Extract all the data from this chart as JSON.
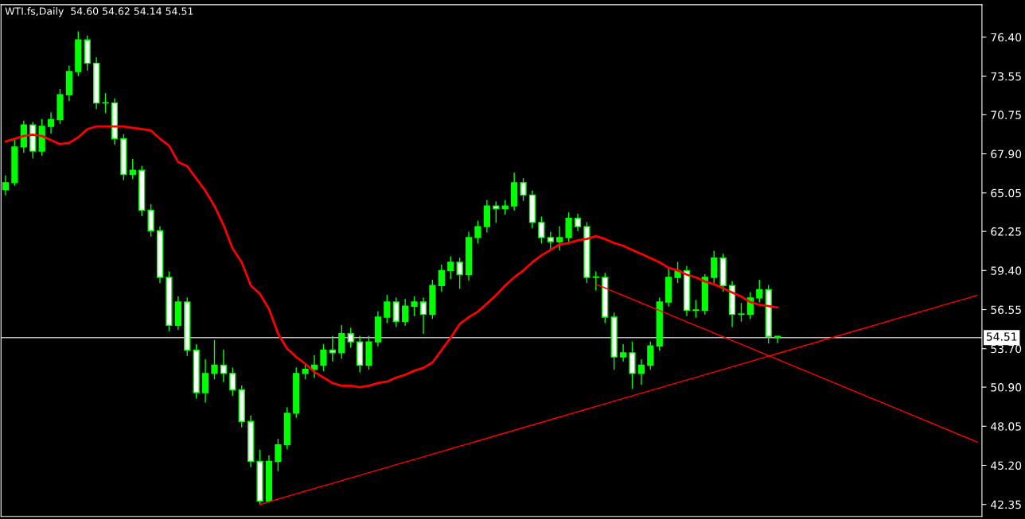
{
  "chart_data": {
    "type": "candlestick",
    "title": "WTI.fs,Daily  54.60 54.62 54.14 54.51",
    "categories": [
      null,
      null,
      null,
      null,
      null,
      null,
      null,
      null,
      null,
      null,
      null,
      null,
      null,
      null,
      null,
      null,
      null,
      null,
      null,
      null,
      null,
      null,
      null,
      null,
      null,
      null,
      null,
      null,
      null,
      null,
      null,
      null,
      null,
      null,
      null,
      null,
      null,
      null,
      null,
      null,
      null,
      null,
      null,
      null,
      null,
      null,
      null,
      null,
      null,
      null,
      null,
      null,
      null,
      null,
      null,
      null,
      null,
      null,
      null,
      null,
      null,
      null,
      null,
      null,
      null,
      null,
      null,
      null,
      null,
      null,
      null,
      null,
      null,
      null,
      null,
      null,
      null,
      null,
      null,
      null,
      null,
      null,
      null,
      null,
      null,
      null,
      null,
      null,
      null,
      null,
      null,
      null,
      null,
      null,
      null,
      null,
      null,
      null,
      null,
      null,
      null,
      null,
      null,
      null,
      null,
      null,
      null,
      null
    ],
    "ohlc": [
      [
        65.3,
        66.3,
        64.9,
        65.8
      ],
      [
        65.8,
        68.9,
        65.6,
        68.4
      ],
      [
        68.4,
        70.3,
        68.0,
        70.0
      ],
      [
        70.0,
        70.2,
        67.6,
        68.1
      ],
      [
        68.1,
        70.4,
        67.8,
        69.9
      ],
      [
        69.9,
        70.9,
        69.4,
        70.4
      ],
      [
        70.4,
        72.6,
        70.1,
        72.2
      ],
      [
        72.2,
        74.3,
        71.8,
        73.9
      ],
      [
        73.9,
        76.8,
        73.6,
        76.2
      ],
      [
        76.2,
        76.5,
        74.0,
        74.5
      ],
      [
        74.5,
        74.9,
        71.2,
        71.6
      ],
      [
        71.6,
        72.3,
        70.9,
        71.6
      ],
      [
        71.6,
        71.9,
        68.6,
        69.0
      ],
      [
        69.0,
        69.3,
        66.0,
        66.4
      ],
      [
        66.4,
        67.5,
        66.1,
        66.7
      ],
      [
        66.7,
        67.0,
        63.4,
        63.8
      ],
      [
        63.8,
        64.2,
        61.9,
        62.3
      ],
      [
        62.3,
        62.6,
        58.5,
        58.9
      ],
      [
        58.9,
        59.3,
        55.0,
        55.4
      ],
      [
        55.4,
        57.5,
        55.1,
        57.1
      ],
      [
        57.1,
        57.4,
        53.2,
        53.6
      ],
      [
        53.6,
        54.0,
        50.1,
        50.5
      ],
      [
        50.5,
        52.9,
        49.8,
        51.9
      ],
      [
        51.9,
        54.3,
        51.5,
        52.5
      ],
      [
        52.5,
        53.6,
        51.3,
        51.9
      ],
      [
        51.9,
        52.3,
        50.3,
        50.7
      ],
      [
        50.7,
        51.0,
        48.0,
        48.4
      ],
      [
        48.4,
        48.8,
        45.1,
        45.5
      ],
      [
        45.5,
        46.3,
        42.35,
        42.6
      ],
      [
        42.6,
        45.9,
        42.5,
        45.5
      ],
      [
        45.5,
        47.1,
        44.8,
        46.7
      ],
      [
        46.7,
        49.4,
        46.4,
        49.0
      ],
      [
        49.0,
        52.3,
        48.7,
        51.9
      ],
      [
        51.9,
        52.6,
        51.5,
        52.2
      ],
      [
        52.2,
        53.2,
        51.6,
        52.5
      ],
      [
        52.5,
        54.0,
        52.1,
        53.6
      ],
      [
        53.6,
        54.6,
        52.8,
        53.4
      ],
      [
        53.4,
        55.4,
        53.0,
        54.8
      ],
      [
        54.8,
        55.2,
        53.8,
        54.2
      ],
      [
        54.2,
        54.6,
        52.0,
        52.5
      ],
      [
        52.5,
        54.6,
        52.2,
        54.2
      ],
      [
        54.2,
        56.4,
        53.9,
        56.0
      ],
      [
        56.0,
        57.6,
        55.6,
        57.1
      ],
      [
        57.1,
        57.4,
        55.3,
        55.7
      ],
      [
        55.7,
        57.3,
        55.4,
        56.8
      ],
      [
        56.8,
        57.5,
        56.1,
        57.1
      ],
      [
        57.1,
        57.4,
        54.8,
        56.2
      ],
      [
        56.2,
        58.7,
        55.9,
        58.3
      ],
      [
        58.3,
        59.8,
        57.9,
        59.4
      ],
      [
        59.4,
        60.4,
        58.8,
        60.0
      ],
      [
        60.0,
        60.3,
        58.1,
        59.1
      ],
      [
        59.1,
        62.2,
        58.7,
        61.8
      ],
      [
        61.8,
        63.0,
        61.4,
        62.6
      ],
      [
        62.6,
        64.5,
        62.2,
        64.1
      ],
      [
        64.1,
        64.4,
        62.9,
        63.9
      ],
      [
        63.9,
        64.5,
        63.5,
        64.1
      ],
      [
        64.1,
        66.5,
        63.8,
        65.8
      ],
      [
        65.8,
        66.1,
        64.5,
        64.9
      ],
      [
        64.9,
        65.2,
        62.5,
        62.9
      ],
      [
        62.9,
        63.3,
        61.4,
        61.8
      ],
      [
        61.8,
        62.2,
        61.0,
        61.5
      ],
      [
        61.5,
        62.6,
        60.9,
        61.8
      ],
      [
        61.8,
        63.6,
        61.5,
        63.2
      ],
      [
        63.2,
        63.5,
        62.3,
        62.6
      ],
      [
        62.6,
        62.9,
        58.5,
        58.9
      ],
      [
        58.9,
        59.3,
        58.0,
        58.9
      ],
      [
        58.9,
        59.2,
        55.6,
        56.0
      ],
      [
        56.0,
        56.3,
        52.2,
        53.1
      ],
      [
        53.1,
        54.0,
        52.8,
        53.4
      ],
      [
        53.4,
        54.2,
        50.8,
        51.9
      ],
      [
        51.9,
        52.9,
        51.1,
        52.5
      ],
      [
        52.5,
        54.2,
        52.2,
        53.9
      ],
      [
        53.9,
        57.4,
        53.6,
        57.1
      ],
      [
        57.1,
        59.6,
        56.8,
        58.9
      ],
      [
        58.9,
        60.0,
        58.5,
        59.4
      ],
      [
        59.4,
        59.7,
        56.1,
        56.5
      ],
      [
        56.5,
        57.2,
        56.0,
        56.5
      ],
      [
        56.5,
        59.1,
        56.2,
        58.9
      ],
      [
        58.9,
        60.8,
        58.5,
        60.3
      ],
      [
        60.3,
        60.6,
        57.9,
        58.3
      ],
      [
        58.3,
        58.6,
        55.3,
        56.2
      ],
      [
        56.2,
        57.0,
        55.7,
        56.2
      ],
      [
        56.2,
        57.8,
        55.9,
        57.4
      ],
      [
        57.4,
        58.7,
        57.1,
        58.0
      ],
      [
        58.0,
        58.3,
        54.1,
        54.6
      ],
      [
        54.6,
        54.62,
        54.14,
        54.51
      ],
      null,
      null,
      null,
      null,
      null,
      null,
      null,
      null,
      null,
      null,
      null,
      null,
      null,
      null,
      null,
      null,
      null,
      null,
      null,
      null,
      null,
      null
    ],
    "color": "#00ff00",
    "series": [
      {
        "type": "line",
        "color": "#ff0000",
        "values": [
          68.8,
          69.0,
          69.2,
          69.3,
          69.2,
          68.9,
          68.6,
          68.7,
          69.1,
          69.7,
          69.9,
          69.9,
          69.9,
          69.9,
          69.8,
          69.7,
          69.6,
          69.0,
          68.5,
          67.3,
          67.0,
          66.1,
          65.2,
          64.1,
          62.7,
          61.0,
          60.0,
          58.3,
          57.7,
          56.6,
          54.8,
          53.7,
          53.1,
          52.6,
          52.0,
          51.6,
          51.2,
          51.0,
          51.0,
          50.9,
          51.0,
          51.2,
          51.3,
          51.6,
          51.8,
          52.1,
          52.3,
          52.7,
          53.6,
          54.5,
          55.5,
          56.0,
          56.4,
          57.0,
          57.6,
          58.3,
          58.9,
          59.4,
          60.0,
          60.5,
          60.9,
          61.3,
          61.4,
          61.6,
          61.7,
          61.9,
          61.7,
          61.4,
          61.2,
          60.9,
          60.6,
          60.3,
          60.0,
          59.6,
          59.4,
          59.1,
          58.9,
          58.6,
          58.4,
          58.1,
          57.8,
          57.5,
          57.1,
          56.9,
          56.8,
          56.7,
          null,
          null,
          null,
          null,
          null,
          null,
          null,
          null,
          null,
          null,
          null,
          null,
          null,
          null,
          null,
          null,
          null,
          null,
          null,
          null,
          null,
          null
        ]
      },
      {
        "type": "line",
        "color": "#ff0000",
        "values": [
          null,
          null,
          null,
          null,
          null,
          null,
          null,
          null,
          null,
          null,
          null,
          null,
          null,
          null,
          null,
          null,
          null,
          null,
          null,
          null,
          null,
          null,
          null,
          null,
          null,
          null,
          null,
          null,
          42.35,
          42.54,
          42.74,
          42.93,
          43.12,
          43.32,
          43.51,
          43.7,
          43.89,
          44.09,
          44.28,
          44.47,
          44.67,
          44.86,
          45.05,
          45.25,
          45.44,
          45.63,
          45.82,
          46.02,
          46.21,
          46.4,
          46.6,
          46.79,
          46.98,
          47.17,
          47.37,
          47.56,
          47.75,
          47.95,
          48.14,
          48.33,
          48.53,
          48.72,
          48.91,
          49.11,
          49.3,
          49.49,
          49.68,
          49.88,
          50.07,
          50.26,
          50.46,
          50.65,
          50.84,
          51.04,
          51.23,
          51.42,
          51.61,
          51.81,
          52.0,
          52.19,
          52.39,
          52.58,
          52.77,
          52.97,
          53.16,
          53.35,
          53.54,
          53.74,
          53.93,
          54.12,
          54.32,
          54.51,
          54.7,
          54.9,
          55.09,
          55.28,
          55.47,
          55.67,
          55.86,
          56.05,
          56.25,
          56.44,
          56.63,
          56.83,
          57.02,
          57.21,
          57.4,
          57.6
        ]
      },
      {
        "type": "line",
        "color": "#ff0000",
        "values": [
          null,
          null,
          null,
          null,
          null,
          null,
          null,
          null,
          null,
          null,
          null,
          null,
          null,
          null,
          null,
          null,
          null,
          null,
          null,
          null,
          null,
          null,
          null,
          null,
          null,
          null,
          null,
          null,
          null,
          null,
          null,
          null,
          null,
          null,
          null,
          null,
          null,
          null,
          null,
          null,
          null,
          null,
          null,
          null,
          null,
          null,
          null,
          null,
          null,
          null,
          null,
          null,
          null,
          null,
          null,
          null,
          null,
          null,
          null,
          null,
          null,
          null,
          null,
          null,
          null,
          58.4,
          58.13,
          57.85,
          57.58,
          57.31,
          57.03,
          56.76,
          56.49,
          56.21,
          55.94,
          55.66,
          55.39,
          55.12,
          54.84,
          54.57,
          54.29,
          54.02,
          53.75,
          53.47,
          53.2,
          52.92,
          52.65,
          52.38,
          52.1,
          51.83,
          51.55,
          51.28,
          51.01,
          50.73,
          50.46,
          50.18,
          49.91,
          49.64,
          49.36,
          49.09,
          48.81,
          48.54,
          48.27,
          47.99,
          47.72,
          47.44,
          47.17,
          46.9
        ]
      }
    ],
    "ref_lines": [
      {
        "axis": "y",
        "value": 54.51,
        "label": "54.51",
        "color": "#c0c0c0"
      }
    ],
    "ylim": [
      41.48,
      78.77
    ],
    "yticks": [
      {
        "value": 42.35,
        "label": "42.35"
      },
      {
        "value": 45.2,
        "label": "45.20"
      },
      {
        "value": 48.05,
        "label": "48.05"
      },
      {
        "value": 50.9,
        "label": "50.90"
      },
      {
        "value": 53.7,
        "label": "53.70"
      },
      {
        "value": 56.55,
        "label": "56.55"
      },
      {
        "value": 59.4,
        "label": "59.40"
      },
      {
        "value": 62.25,
        "label": "62.25"
      },
      {
        "value": 65.05,
        "label": "65.05"
      },
      {
        "value": 67.9,
        "label": "67.90"
      },
      {
        "value": 70.75,
        "label": "70.75"
      },
      {
        "value": 73.55,
        "label": "73.55"
      },
      {
        "value": 76.4,
        "label": "76.40"
      }
    ],
    "tick_labels": "y"
  }
}
